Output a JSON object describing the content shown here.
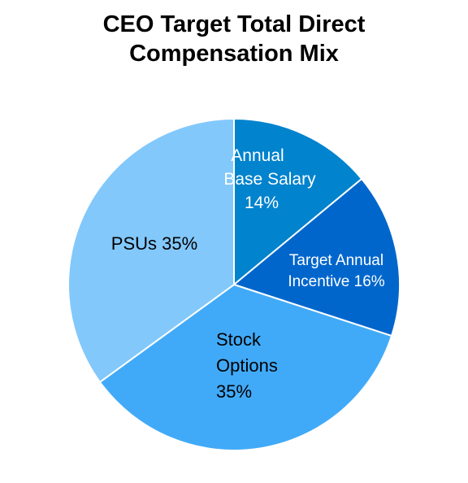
{
  "chart_data": {
    "type": "pie",
    "title_lines": [
      "CEO Target Total Direct",
      "Compensation Mix"
    ],
    "slices": [
      {
        "label_lines": [
          "Annual",
          "Base Salary",
          "14%"
        ],
        "value": 14,
        "color": "#0183CD"
      },
      {
        "label_lines": [
          "Target Annual",
          "Incentive 16%"
        ],
        "value": 16,
        "color": "#0066CC"
      },
      {
        "label_lines": [
          "Stock",
          "Options",
          "35%"
        ],
        "value": 35,
        "color": "#41AAF8"
      },
      {
        "label_lines": [
          "PSUs 35%"
        ],
        "value": 35,
        "color": "#82C8FB"
      }
    ],
    "label_colors": [
      "#ffffff",
      "#ffffff",
      "#000000",
      "#000000"
    ],
    "start": "12 o'clock",
    "direction": "clockwise"
  }
}
